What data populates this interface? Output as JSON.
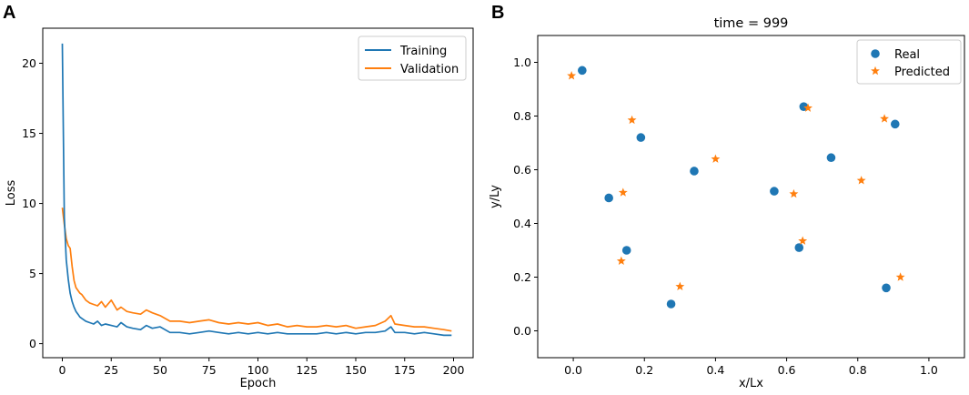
{
  "panels": {
    "a": "A",
    "b": "B"
  },
  "chart_data": [
    {
      "type": "line",
      "xlabel": "Epoch",
      "ylabel": "Loss",
      "xlim": [
        -10,
        210
      ],
      "ylim": [
        -1,
        22.5
      ],
      "xticks": [
        0,
        25,
        50,
        75,
        100,
        125,
        150,
        175,
        200
      ],
      "yticks": [
        0,
        5,
        10,
        15,
        20
      ],
      "legend_position": "top-right",
      "series": [
        {
          "name": "Training",
          "color": "#1f77b4",
          "x": [
            0,
            1,
            2,
            3,
            4,
            5,
            6,
            7,
            8,
            9,
            10,
            12,
            14,
            16,
            18,
            20,
            22,
            25,
            28,
            30,
            33,
            36,
            40,
            43,
            46,
            50,
            55,
            60,
            65,
            70,
            75,
            80,
            85,
            90,
            95,
            100,
            105,
            110,
            115,
            120,
            125,
            130,
            135,
            140,
            145,
            150,
            155,
            160,
            165,
            168,
            170,
            175,
            180,
            185,
            190,
            195,
            199
          ],
          "y": [
            21.4,
            9.0,
            6.0,
            4.6,
            3.6,
            3.0,
            2.6,
            2.3,
            2.1,
            1.9,
            1.8,
            1.6,
            1.5,
            1.4,
            1.6,
            1.3,
            1.4,
            1.3,
            1.2,
            1.5,
            1.2,
            1.1,
            1.0,
            1.3,
            1.1,
            1.2,
            0.8,
            0.8,
            0.7,
            0.8,
            0.9,
            0.8,
            0.7,
            0.8,
            0.7,
            0.8,
            0.7,
            0.8,
            0.7,
            0.7,
            0.7,
            0.7,
            0.8,
            0.7,
            0.8,
            0.7,
            0.8,
            0.8,
            0.9,
            1.2,
            0.8,
            0.8,
            0.7,
            0.8,
            0.7,
            0.6,
            0.6
          ]
        },
        {
          "name": "Validation",
          "color": "#ff7f0e",
          "x": [
            0,
            1,
            2,
            3,
            4,
            5,
            6,
            7,
            8,
            9,
            10,
            12,
            14,
            16,
            18,
            20,
            22,
            25,
            28,
            30,
            33,
            36,
            40,
            43,
            46,
            50,
            55,
            60,
            65,
            70,
            75,
            80,
            85,
            90,
            95,
            100,
            105,
            110,
            115,
            120,
            125,
            130,
            135,
            140,
            145,
            150,
            155,
            160,
            165,
            168,
            170,
            175,
            180,
            185,
            190,
            195,
            199
          ],
          "y": [
            9.7,
            8.5,
            7.5,
            7.0,
            6.8,
            5.5,
            4.5,
            4.0,
            3.8,
            3.6,
            3.5,
            3.1,
            2.9,
            2.8,
            2.7,
            3.0,
            2.6,
            3.1,
            2.4,
            2.6,
            2.3,
            2.2,
            2.1,
            2.4,
            2.2,
            2.0,
            1.6,
            1.6,
            1.5,
            1.6,
            1.7,
            1.5,
            1.4,
            1.5,
            1.4,
            1.5,
            1.3,
            1.4,
            1.2,
            1.3,
            1.2,
            1.2,
            1.3,
            1.2,
            1.3,
            1.1,
            1.2,
            1.3,
            1.6,
            2.0,
            1.4,
            1.3,
            1.2,
            1.2,
            1.1,
            1.0,
            0.9
          ]
        }
      ]
    },
    {
      "type": "scatter",
      "title": "time = 999",
      "xlabel": "x/Lx",
      "ylabel": "y/Ly",
      "xlim": [
        -0.1,
        1.1
      ],
      "ylim": [
        -0.1,
        1.1
      ],
      "xticks": [
        "0.0",
        "0.2",
        "0.4",
        "0.6",
        "0.8",
        "1.0"
      ],
      "yticks": [
        "0.0",
        "0.2",
        "0.4",
        "0.6",
        "0.8",
        "1.0"
      ],
      "legend_position": "top-right",
      "series": [
        {
          "name": "Real",
          "marker": "circle",
          "color": "#1f77b4",
          "points": [
            [
              0.025,
              0.97
            ],
            [
              0.19,
              0.72
            ],
            [
              0.1,
              0.495
            ],
            [
              0.15,
              0.3
            ],
            [
              0.34,
              0.595
            ],
            [
              0.275,
              0.1
            ],
            [
              0.565,
              0.52
            ],
            [
              0.648,
              0.835
            ],
            [
              0.635,
              0.31
            ],
            [
              0.725,
              0.645
            ],
            [
              0.905,
              0.77
            ],
            [
              0.88,
              0.16
            ]
          ]
        },
        {
          "name": "Predicted",
          "marker": "star",
          "color": "#ff7f0e",
          "points": [
            [
              -0.005,
              0.95
            ],
            [
              0.165,
              0.785
            ],
            [
              0.14,
              0.515
            ],
            [
              0.135,
              0.26
            ],
            [
              0.4,
              0.64
            ],
            [
              0.3,
              0.165
            ],
            [
              0.62,
              0.51
            ],
            [
              0.66,
              0.83
            ],
            [
              0.645,
              0.335
            ],
            [
              0.81,
              0.56
            ],
            [
              0.875,
              0.79
            ],
            [
              0.92,
              0.2
            ]
          ]
        }
      ]
    }
  ]
}
